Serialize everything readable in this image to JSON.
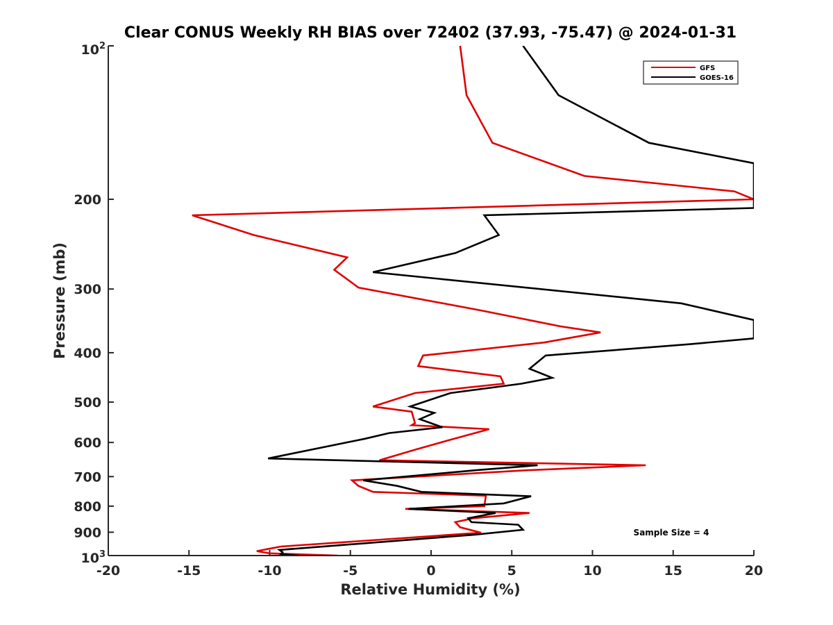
{
  "chart_data": {
    "type": "line",
    "title": "Clear CONUS Weekly RH BIAS over 72402 (37.93, -75.47) @ 2024-01-31",
    "xlabel": "Relative Humidity (%)",
    "ylabel": "Pressure (mb)",
    "xlim": [
      -20,
      20
    ],
    "ylim": [
      100,
      1000
    ],
    "y_scale": "log",
    "y_reversed": true,
    "x_ticks": [
      -20,
      -15,
      -10,
      -5,
      0,
      5,
      10,
      15,
      20
    ],
    "x_tick_labels": [
      "-20",
      "-15",
      "-10",
      "-5",
      "0",
      "5",
      "10",
      "15",
      "20"
    ],
    "y_ticks": [
      200,
      300,
      400,
      500,
      600,
      700,
      800,
      900
    ],
    "y_tick_labels": [
      "200",
      "300",
      "400",
      "500",
      "600",
      "700",
      "800",
      "900"
    ],
    "y_top_label": {
      "base": "10",
      "exp": "2"
    },
    "y_bottom_label": {
      "base": "10",
      "exp": "3"
    },
    "legend_position": "top-right",
    "annotation": "Sample Size = 4",
    "series": [
      {
        "name": "GFS",
        "color": "#e00000",
        "points": [
          [
            1.8,
            100
          ],
          [
            2.2,
            125
          ],
          [
            3.8,
            155
          ],
          [
            9.5,
            180
          ],
          [
            18.8,
            193
          ],
          [
            20.0,
            200
          ],
          [
            -14.8,
            215
          ],
          [
            -11.0,
            235
          ],
          [
            -5.2,
            260
          ],
          [
            -6.0,
            275
          ],
          [
            -4.5,
            298
          ],
          [
            3.0,
            330
          ],
          [
            8.0,
            355
          ],
          [
            10.5,
            365
          ],
          [
            7.0,
            382
          ],
          [
            -0.5,
            405
          ],
          [
            -0.8,
            425
          ],
          [
            4.3,
            445
          ],
          [
            4.5,
            460
          ],
          [
            -1.0,
            480
          ],
          [
            -3.6,
            510
          ],
          [
            -1.2,
            522
          ],
          [
            -1.0,
            550
          ],
          [
            -1.2,
            555
          ],
          [
            3.6,
            565
          ],
          [
            1.0,
            595
          ],
          [
            -1.0,
            620
          ],
          [
            -3.2,
            650
          ],
          [
            13.3,
            665
          ],
          [
            6.0,
            680
          ],
          [
            -4.9,
            712
          ],
          [
            -4.5,
            730
          ],
          [
            -3.6,
            750
          ],
          [
            3.4,
            763
          ],
          [
            3.3,
            800
          ],
          [
            -1.6,
            810
          ],
          [
            6.1,
            825
          ],
          [
            2.6,
            845
          ],
          [
            1.5,
            860
          ],
          [
            1.8,
            880
          ],
          [
            3.1,
            902
          ],
          [
            -9.3,
            960
          ],
          [
            -10.8,
            980
          ],
          [
            -10.0,
            990
          ],
          [
            -5.8,
            1000
          ]
        ]
      },
      {
        "name": "GOES-16",
        "color": "#000000",
        "points": [
          [
            5.7,
            100
          ],
          [
            7.9,
            125
          ],
          [
            13.5,
            155
          ],
          [
            20.0,
            170
          ],
          [
            20.0,
            208
          ],
          [
            3.3,
            215
          ],
          [
            4.2,
            235
          ],
          [
            1.5,
            255
          ],
          [
            -3.6,
            278
          ],
          [
            15.5,
            320
          ],
          [
            20.0,
            345
          ],
          [
            20.0,
            375
          ],
          [
            16.0,
            385
          ],
          [
            7.1,
            405
          ],
          [
            6.1,
            430
          ],
          [
            7.5,
            448
          ],
          [
            5.6,
            460
          ],
          [
            1.2,
            480
          ],
          [
            -1.3,
            510
          ],
          [
            0.2,
            525
          ],
          [
            -0.7,
            540
          ],
          [
            0.7,
            560
          ],
          [
            -2.6,
            575
          ],
          [
            -4.1,
            590
          ],
          [
            -10.1,
            645
          ],
          [
            6.6,
            665
          ],
          [
            2.8,
            680
          ],
          [
            -4.2,
            712
          ],
          [
            -2.1,
            730
          ],
          [
            -0.6,
            750
          ],
          [
            6.2,
            765
          ],
          [
            4.5,
            790
          ],
          [
            -1.4,
            810
          ],
          [
            4.0,
            825
          ],
          [
            2.3,
            845
          ],
          [
            2.5,
            860
          ],
          [
            5.4,
            870
          ],
          [
            5.7,
            890
          ],
          [
            2.7,
            910
          ],
          [
            -9.4,
            975
          ],
          [
            -9.2,
            985
          ],
          [
            -9.3,
            993
          ],
          [
            -8.2,
            1000
          ]
        ]
      }
    ]
  }
}
